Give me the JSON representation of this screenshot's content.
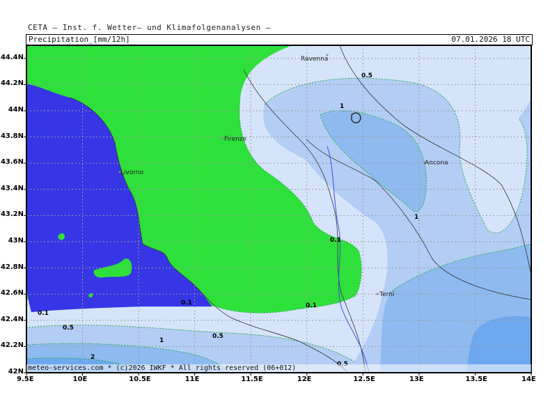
{
  "header": {
    "title": "CETA — Inst. f. Wetter— und Klimafolgenanalysen —",
    "variable": "Precipitation_[mm/12h]",
    "valid_time": "07.01.2026  18 UTC"
  },
  "map": {
    "lat_ticks": [
      "44.4N",
      "44.2N",
      "44N",
      "43.8N",
      "43.6N",
      "43.4N",
      "43.2N",
      "43N",
      "42.8N",
      "42.6N",
      "42.4N",
      "42.2N",
      "42N"
    ],
    "lon_ticks": [
      "9.5E",
      "10E",
      "10.5E",
      "11E",
      "11.5E",
      "12E",
      "12.5E",
      "13E",
      "13.5E",
      "14E"
    ],
    "lon_range": [
      9.5,
      14.0
    ],
    "lat_range": [
      42.0,
      44.5
    ],
    "cities": [
      "Ravenna",
      "Firenze",
      "Livorno",
      "Ancona",
      "Terni"
    ],
    "contour_labels": [
      "0.5",
      "1",
      "1",
      "0.1",
      "0.1",
      "0.1",
      "0.1",
      "0.5",
      "0.5",
      "1",
      "2",
      "0.5"
    ],
    "legend_colors": {
      "sea": "#3636e6",
      "zero_land": "#2ee03a",
      "lt_0_5": "#d6e4fb",
      "0_5_to_1": "#b3cdf5",
      "1_to_2": "#8ebaf0",
      "gt_2": "#6ea8ee"
    }
  },
  "footer": {
    "credit": "meteo-services.com * (c)2026 IWKF * All rights reserved (06+012)"
  }
}
